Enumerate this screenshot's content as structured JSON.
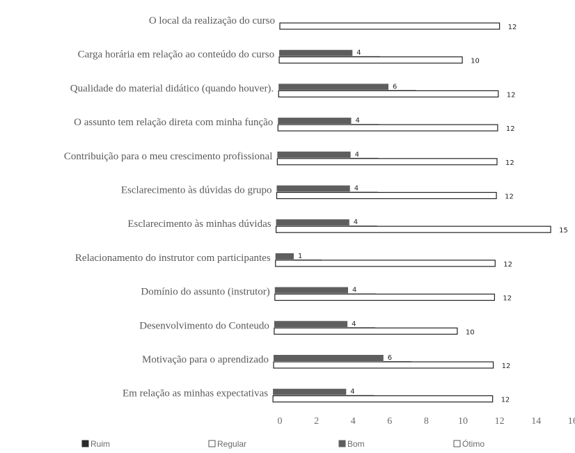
{
  "chart_data": {
    "type": "bar",
    "orientation": "horizontal",
    "categories": [
      "O local da realização do curso",
      "Carga horária em relação ao conteúdo do curso",
      "Qualidade do material didático (quando houver).",
      "O assunto tem relação direta com minha função",
      "Contribuição para o meu crescimento profissional",
      "Esclarecimento às dúvidas do grupo",
      "Esclarecimento às minhas dúvidas",
      "Relacionamento do instrutor com participantes",
      "Domínio do assunto (instrutor)",
      "Desenvolvimento do Conteudo",
      "Motivação para o aprendizado",
      "Em relação as minhas expectativas"
    ],
    "series": [
      {
        "name": "Ruim",
        "color": "#2a2a2a",
        "values": [
          null,
          null,
          null,
          null,
          null,
          null,
          null,
          null,
          null,
          null,
          null,
          null
        ]
      },
      {
        "name": "Regular",
        "color": "#ffffff",
        "values": [
          null,
          null,
          null,
          null,
          null,
          null,
          null,
          null,
          null,
          null,
          null,
          null
        ]
      },
      {
        "name": "Bom",
        "color": "#5e5e5e",
        "values": [
          null,
          4,
          6,
          4,
          4,
          4,
          4,
          1,
          4,
          4,
          6,
          4
        ]
      },
      {
        "name": "Ótimo",
        "color": "#ffffff",
        "values": [
          12,
          10,
          12,
          12,
          12,
          12,
          15,
          12,
          12,
          10,
          12,
          12
        ]
      }
    ],
    "xlim": [
      0,
      16
    ],
    "xticks": [
      "0",
      "2",
      "4",
      "6",
      "8",
      "10",
      "12",
      "14",
      "16"
    ],
    "grid": false,
    "legend_position": "bottom"
  }
}
